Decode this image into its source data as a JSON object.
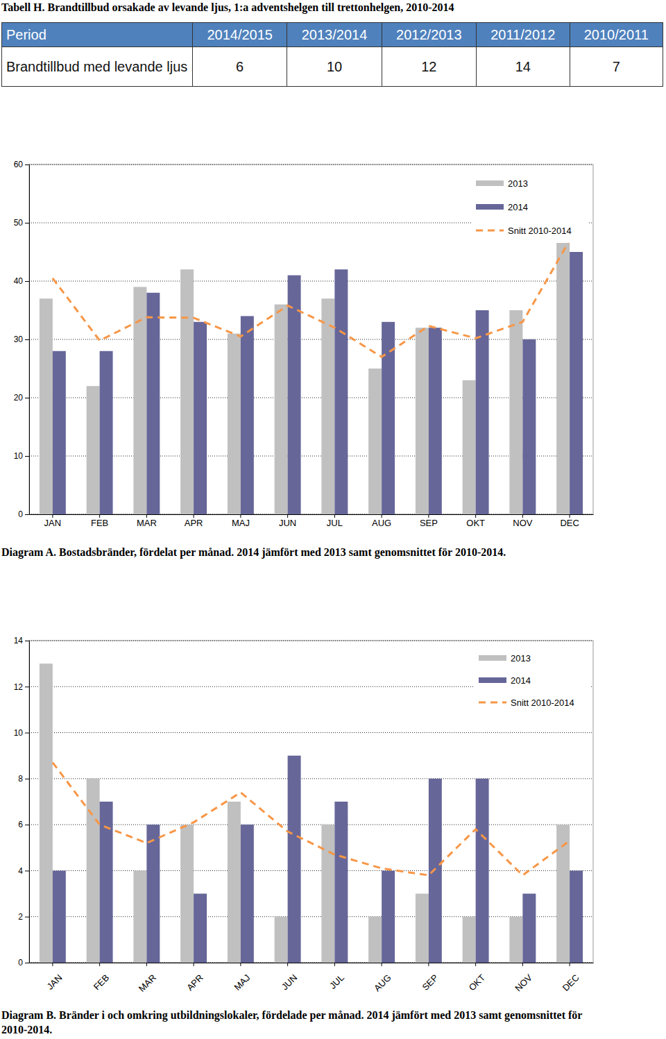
{
  "table": {
    "title": "Tabell H. Brandtillbud orsakade av levande ljus, 1:a adventshelgen till trettonhelgen, 2010-2014",
    "header": [
      "Period",
      "2014/2015",
      "2013/2014",
      "2012/2013",
      "2011/2012",
      "2010/2011"
    ],
    "rows": [
      [
        "Brandtillbud med levande ljus",
        6,
        10,
        12,
        14,
        7
      ]
    ]
  },
  "chart_data": [
    {
      "type": "bar",
      "title": "Diagram A. Bostadsbränder, fördelat per månad. 2014 jämfört med 2013 samt genomsnittet för 2010-2014.",
      "categories": [
        "JAN",
        "FEB",
        "MAR",
        "APR",
        "MAJ",
        "JUN",
        "JUL",
        "AUG",
        "SEP",
        "OKT",
        "NOV",
        "DEC"
      ],
      "series": [
        {
          "name": "2013",
          "type": "bar",
          "color": "#c0c0c0",
          "values": [
            37,
            22,
            39,
            42,
            31,
            36,
            37,
            25,
            32,
            23,
            35,
            46.8
          ]
        },
        {
          "name": "2014",
          "type": "bar",
          "color": "#666699",
          "values": [
            28,
            28,
            38,
            33,
            34,
            41,
            42,
            33,
            32,
            35,
            30,
            45
          ]
        },
        {
          "name": "Snitt 2010-2014",
          "type": "line",
          "line_style": "dashed",
          "color": "#f79646",
          "values": [
            40.5,
            29.8,
            33.8,
            33.7,
            30.5,
            35.8,
            32,
            27,
            32.3,
            30.2,
            33,
            47
          ]
        }
      ],
      "ylim": [
        0,
        60
      ],
      "yticks": [
        0,
        10,
        20,
        30,
        40,
        50,
        60
      ],
      "grid": true,
      "legend": "upper right"
    },
    {
      "type": "bar",
      "title": "Diagram B. Bränder i och omkring utbildningslokaler, fördelade per månad. 2014 jämfört med 2013 samt genomsnittet för 2010-2014.",
      "categories": [
        "JAN",
        "FEB",
        "MAR",
        "APR",
        "MAJ",
        "JUN",
        "JUL",
        "AUG",
        "SEP",
        "OKT",
        "NOV",
        "DEC"
      ],
      "series": [
        {
          "name": "2013",
          "type": "bar",
          "color": "#c0c0c0",
          "values": [
            13,
            8,
            4,
            6,
            7,
            2,
            6,
            2,
            3,
            2,
            2,
            6
          ]
        },
        {
          "name": "2014",
          "type": "bar",
          "color": "#666699",
          "values": [
            4,
            7,
            6,
            3,
            6,
            9,
            7,
            4,
            8,
            8,
            3,
            4
          ]
        },
        {
          "name": "Snitt 2010-2014",
          "type": "line",
          "line_style": "dashed",
          "color": "#f79646",
          "values": [
            8.7,
            6,
            5.2,
            6.1,
            7.4,
            5.7,
            4.7,
            4.1,
            3.8,
            5.8,
            3.8,
            5.3
          ]
        }
      ],
      "ylim": [
        0,
        14
      ],
      "yticks": [
        0,
        2,
        4,
        6,
        8,
        10,
        12,
        14
      ],
      "grid": true,
      "legend": "upper right"
    }
  ]
}
